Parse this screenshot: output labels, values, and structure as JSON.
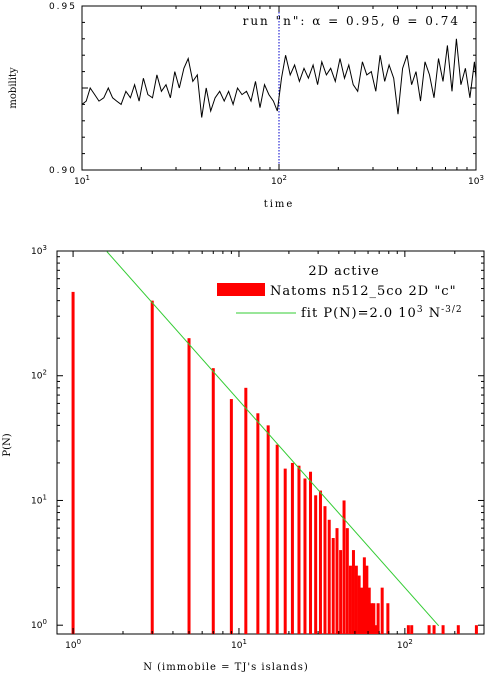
{
  "chart_data": [
    {
      "type": "line",
      "annotation": "run \"n\":   α = 0.95,  θ = 0.74",
      "xlabel": "time",
      "ylabel": "mobility",
      "xscale": "log",
      "xlim": [
        10,
        1000
      ],
      "ylim": [
        0.9,
        0.95
      ],
      "xticks": [
        "10",
        "10",
        "10"
      ],
      "xtick_exp": [
        "1",
        "2",
        "3"
      ],
      "yticks": [
        "0.90",
        "0.95"
      ],
      "vline": {
        "x": 100,
        "style": "dotted",
        "color": "#0000cc"
      },
      "series": [
        {
          "color": "#000000",
          "x": [
            10,
            10.5,
            11,
            11.6,
            12.2,
            12.9,
            13.6,
            14.3,
            15,
            15.8,
            16.7,
            17.6,
            18.5,
            19.5,
            20.5,
            21.6,
            22.8,
            24,
            25.3,
            26.7,
            28.1,
            29.6,
            31.2,
            32.9,
            34.6,
            36.5,
            38.5,
            40.5,
            42.7,
            45,
            47.4,
            50,
            52.7,
            55.5,
            58.5,
            61.6,
            64.9,
            68.4,
            72.1,
            76,
            80.1,
            84.4,
            88.9,
            93.7,
            98,
            100,
            103,
            108,
            114,
            120,
            127,
            134,
            141,
            149,
            157,
            165,
            174,
            183,
            193,
            204,
            215,
            226,
            238,
            251,
            265,
            279,
            294,
            310,
            326,
            344,
            362,
            382,
            402,
            424,
            447,
            471,
            496,
            523,
            551,
            581,
            612,
            645,
            680,
            716,
            755,
            795,
            838,
            883,
            931,
            981,
            1000
          ],
          "values": [
            0.92,
            0.921,
            0.925,
            0.923,
            0.921,
            0.922,
            0.925,
            0.922,
            0.921,
            0.92,
            0.924,
            0.922,
            0.926,
            0.921,
            0.928,
            0.923,
            0.922,
            0.929,
            0.924,
            0.926,
            0.922,
            0.93,
            0.925,
            0.931,
            0.934,
            0.927,
            0.929,
            0.916,
            0.925,
            0.918,
            0.922,
            0.924,
            0.921,
            0.924,
            0.92,
            0.925,
            0.923,
            0.924,
            0.921,
            0.927,
            0.919,
            0.926,
            0.923,
            0.921,
            0.918,
            0.922,
            0.928,
            0.935,
            0.929,
            0.932,
            0.927,
            0.931,
            0.928,
            0.932,
            0.926,
            0.933,
            0.929,
            0.931,
            0.927,
            0.934,
            0.928,
            0.932,
            0.926,
            0.924,
            0.933,
            0.929,
            0.93,
            0.924,
            0.935,
            0.927,
            0.932,
            0.928,
            0.917,
            0.931,
            0.935,
            0.926,
            0.93,
            0.921,
            0.933,
            0.929,
            0.922,
            0.934,
            0.927,
            0.938,
            0.924,
            0.94,
            0.926,
            0.931,
            0.922,
            0.933,
            0.928
          ]
        }
      ]
    },
    {
      "type": "bar",
      "xlabel": "N (immobile = TJ's islands)",
      "ylabel": "P(N)",
      "xscale": "log",
      "yscale": "log",
      "xlim": [
        0.8,
        300
      ],
      "ylim": [
        0.85,
        1000
      ],
      "xticks": [
        "10",
        "10",
        "10"
      ],
      "xtick_exp": [
        "0",
        "1",
        "2"
      ],
      "yticks": [
        "10",
        "10",
        "10",
        "10"
      ],
      "ytick_exp": [
        "0",
        "1",
        "2",
        "3"
      ],
      "legend_title": "2D active",
      "legend_position": "top-right",
      "series": [
        {
          "name": "Natoms n512_5co 2D \"c\"",
          "color": "#ff0000",
          "x": [
            1,
            3,
            5,
            7,
            9,
            11,
            13,
            15,
            17,
            19,
            21,
            23,
            25,
            27,
            29,
            31,
            33,
            35,
            37,
            39,
            41,
            43,
            45,
            47,
            49,
            51,
            53,
            55,
            57,
            59,
            61,
            63,
            65,
            67,
            69,
            73,
            79,
            105,
            110,
            140,
            150,
            170,
            210,
            270
          ],
          "values": [
            470,
            400,
            200,
            115,
            65,
            80,
            50,
            40,
            28,
            18,
            20,
            19,
            15,
            17,
            11,
            12,
            9,
            7,
            5,
            6,
            4,
            10,
            6,
            3,
            4,
            3,
            2.5,
            2,
            3.5,
            3,
            2,
            1.5,
            1.5,
            1,
            1.5,
            2,
            1.5,
            1,
            1,
            1,
            1,
            1,
            1,
            1
          ]
        }
      ],
      "fit": {
        "name": "fit P(N)=2.0 10³ N⁻³ᐟ²",
        "label_main": "fit P(N)=2.0 10",
        "label_exp1": "3",
        "label_mid": " N",
        "label_exp2": "-3/2",
        "color": "#33cc33",
        "coefficient": 2000,
        "exponent": -1.5,
        "x_range": [
          1.6,
          160
        ]
      }
    }
  ]
}
